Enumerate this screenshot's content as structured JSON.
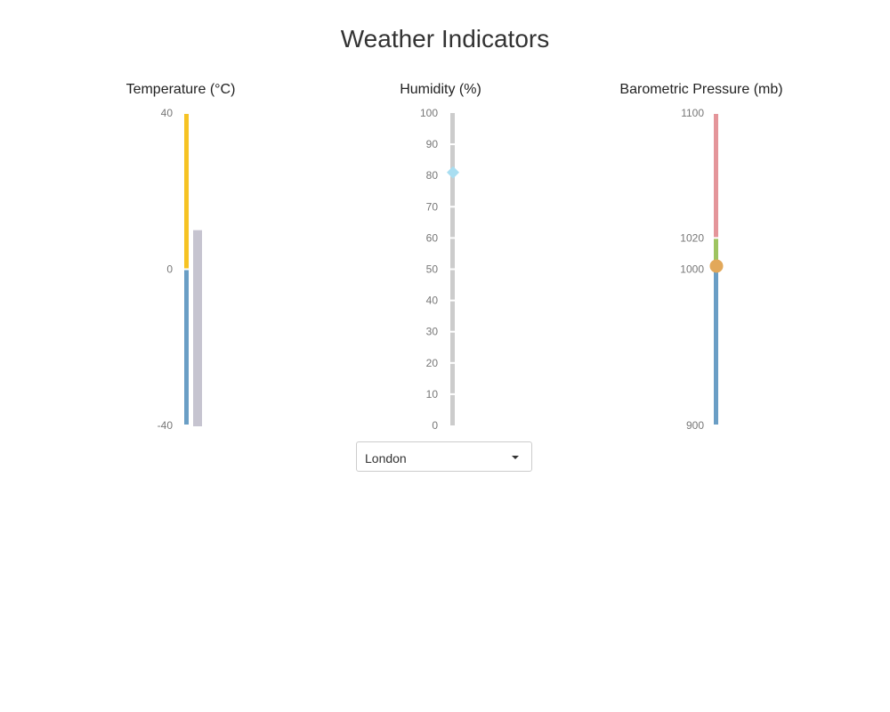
{
  "page": {
    "title": "Weather Indicators"
  },
  "location_select": {
    "selected": "London"
  },
  "colors": {
    "temp_above_zero": "#f6c324",
    "temp_below_zero": "#6a9ec5",
    "temp_value_bar": "#c6c4d0",
    "humidity_track": "#cccccc",
    "humidity_marker": "#a9def1",
    "pressure_high": "#e4959a",
    "pressure_normal": "#9ec460",
    "pressure_low": "#6a9ec5",
    "pressure_marker": "#e2a85a"
  },
  "chart_data": [
    {
      "type": "bar",
      "chart": "temperature",
      "title": "Temperature (°C)",
      "ylim": [
        -40,
        40
      ],
      "tick_labels": [
        "40",
        "0",
        "-40"
      ],
      "tick_values": [
        40,
        0,
        -40
      ],
      "bands": [
        {
          "from": 0,
          "to": 40,
          "color_key": "temp_above_zero"
        },
        {
          "from": -40,
          "to": 0,
          "color_key": "temp_below_zero"
        }
      ],
      "value": 10
    },
    {
      "type": "scatter",
      "chart": "humidity",
      "title": "Humidity (%)",
      "ylim": [
        0,
        100
      ],
      "tick_labels": [
        "100",
        "90",
        "80",
        "70",
        "60",
        "50",
        "40",
        "30",
        "20",
        "10",
        "0"
      ],
      "tick_values": [
        100,
        90,
        80,
        70,
        60,
        50,
        40,
        30,
        20,
        10,
        0
      ],
      "marker": "diamond",
      "value": 81
    },
    {
      "type": "scatter",
      "chart": "pressure",
      "title": "Barometric Pressure (mb)",
      "ylim": [
        900,
        1100
      ],
      "tick_labels": [
        "1100",
        "1020",
        "1000",
        "900"
      ],
      "tick_values": [
        1100,
        1020,
        1000,
        900
      ],
      "bands": [
        {
          "from": 1020,
          "to": 1100,
          "color_key": "pressure_high"
        },
        {
          "from": 1000,
          "to": 1020,
          "color_key": "pressure_normal"
        },
        {
          "from": 900,
          "to": 1000,
          "color_key": "pressure_low"
        }
      ],
      "marker": "circle",
      "value": 1002
    }
  ]
}
